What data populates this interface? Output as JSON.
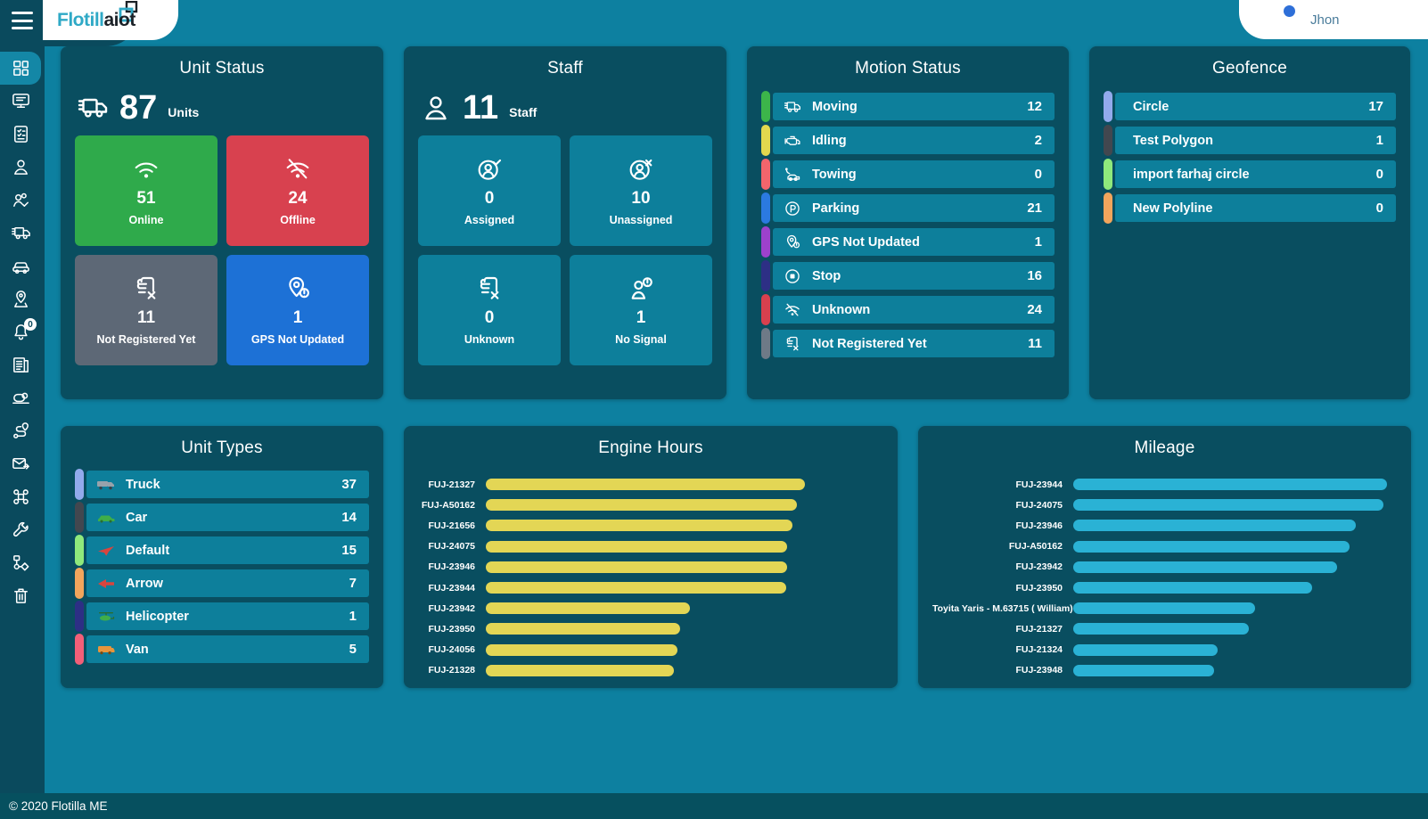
{
  "header": {
    "logo_text_primary": "Flotill",
    "logo_text_secondary": "aiot",
    "user_name": "Jhon",
    "bell_badge_color": "#2e6fd8"
  },
  "sidebar": {
    "notification_badge": "0",
    "items": [
      {
        "icon": "dashboard-icon",
        "active": true
      },
      {
        "icon": "monitor-icon"
      },
      {
        "icon": "checklist-icon"
      },
      {
        "icon": "user-icon"
      },
      {
        "icon": "staff-group-icon"
      },
      {
        "icon": "truck-icon"
      },
      {
        "icon": "car-icon"
      },
      {
        "icon": "map-pin-icon"
      },
      {
        "icon": "bell-icon",
        "badge": "0"
      },
      {
        "icon": "report-icon"
      },
      {
        "icon": "console-icon"
      },
      {
        "icon": "route-icon"
      },
      {
        "icon": "envelope-send-icon"
      },
      {
        "icon": "command-icon"
      },
      {
        "icon": "wrench-icon"
      },
      {
        "icon": "workflow-icon"
      },
      {
        "icon": "trash-icon"
      }
    ]
  },
  "cards": {
    "unit_status": {
      "title": "Unit Status",
      "total": "87",
      "total_label": "Units",
      "tiles": [
        {
          "icon": "wifi-icon",
          "value": "51",
          "label": "Online",
          "color": "#2faa4b"
        },
        {
          "icon": "wifi-off-icon",
          "value": "24",
          "label": "Offline",
          "color": "#d8414f"
        },
        {
          "icon": "document-x-icon",
          "value": "11",
          "label": "Not Registered Yet",
          "color": "#5d6876"
        },
        {
          "icon": "location-alert-icon",
          "value": "1",
          "label": "GPS Not Updated",
          "color": "#1d71d6"
        }
      ]
    },
    "staff": {
      "title": "Staff",
      "total": "11",
      "total_label": "Staff",
      "tiles": [
        {
          "icon": "person-check-icon",
          "value": "0",
          "label": "Assigned",
          "color": "#0d7f9b"
        },
        {
          "icon": "person-x-icon",
          "value": "10",
          "label": "Unassigned",
          "color": "#0d7f9b"
        },
        {
          "icon": "document-x-icon",
          "value": "0",
          "label": "Unknown",
          "color": "#0d7f9b"
        },
        {
          "icon": "person-alert-icon",
          "value": "1",
          "label": "No Signal",
          "color": "#0d7f9b"
        }
      ]
    },
    "motion_status": {
      "title": "Motion Status",
      "rows": [
        {
          "icon": "truck-icon",
          "label": "Moving",
          "value": "12",
          "color": "#3cb54a"
        },
        {
          "icon": "engine-icon",
          "label": "Idling",
          "value": "2",
          "color": "#e2d84e"
        },
        {
          "icon": "tow-truck-icon",
          "label": "Towing",
          "value": "0",
          "color": "#f2656c"
        },
        {
          "icon": "parking-icon",
          "label": "Parking",
          "value": "21",
          "color": "#2b7ae0"
        },
        {
          "icon": "location-alert-icon",
          "label": "GPS Not Updated",
          "value": "1",
          "color": "#9d41cc"
        },
        {
          "icon": "stop-icon",
          "label": "Stop",
          "value": "16",
          "color": "#2d2f85"
        },
        {
          "icon": "wifi-off-icon",
          "label": "Unknown",
          "value": "24",
          "color": "#d8404e"
        },
        {
          "icon": "document-x-icon",
          "label": "Not Registered Yet",
          "value": "11",
          "color": "#6e7a87"
        }
      ]
    },
    "geofence": {
      "title": "Geofence",
      "rows": [
        {
          "label": "Circle",
          "value": "17",
          "color": "#92aaec"
        },
        {
          "label": "Test Polygon",
          "value": "1",
          "color": "#42474f"
        },
        {
          "label": "import farhaj circle",
          "value": "0",
          "color": "#8fe97c"
        },
        {
          "label": "New Polyline",
          "value": "0",
          "color": "#f2a55c"
        }
      ]
    },
    "unit_types": {
      "title": "Unit Types",
      "rows": [
        {
          "icon": "truck-image-icon",
          "label": "Truck",
          "value": "37",
          "color": "#92aaec"
        },
        {
          "icon": "car-image-icon",
          "label": "Car",
          "value": "14",
          "color": "#42474f"
        },
        {
          "icon": "plane-image-icon",
          "label": "Default",
          "value": "15",
          "color": "#8fe97c"
        },
        {
          "icon": "arrow-image-icon",
          "label": "Arrow",
          "value": "7",
          "color": "#f2a55c"
        },
        {
          "icon": "helicopter-image-icon",
          "label": "Helicopter",
          "value": "1",
          "color": "#2d2f85"
        },
        {
          "icon": "van-image-icon",
          "label": "Van",
          "value": "5",
          "color": "#f25f78"
        }
      ]
    }
  },
  "chart_data": [
    {
      "id": "engine_hours",
      "type": "bar",
      "orientation": "horizontal",
      "title": "Engine Hours",
      "bar_color": "#e3d655",
      "categories": [
        "FUJ-21327",
        "FUJ-A50162",
        "FUJ-21656",
        "FUJ-24075",
        "FUJ-23946",
        "FUJ-23944",
        "FUJ-23942",
        "FUJ-23950",
        "FUJ-24056",
        "FUJ-21328"
      ],
      "values_pct_of_max": [
        100,
        97.5,
        96,
        94.5,
        94.5,
        94,
        64,
        61,
        60,
        59
      ]
    },
    {
      "id": "mileage",
      "type": "bar",
      "orientation": "horizontal",
      "title": "Mileage",
      "bar_color": "#2ab2d5",
      "categories": [
        "FUJ-23944",
        "FUJ-24075",
        "FUJ-23946",
        "FUJ-A50162",
        "FUJ-23942",
        "FUJ-23950",
        "Toyita Yaris - M.63715 ( William)",
        "FUJ-21327",
        "FUJ-21324",
        "FUJ-23948"
      ],
      "values_pct_of_max": [
        100,
        99,
        90,
        88,
        84,
        76,
        58,
        56,
        46,
        45
      ]
    }
  ],
  "colors": {
    "page_bg": "#0d80a0",
    "card_bg": "#094e60",
    "row_bg": "#0d7f9b",
    "sidebar_bg": "#0a4a5d",
    "active_item_bg": "#1487a6",
    "footer_bg": "#06505f"
  },
  "footer": {
    "copyright": "© 2020 Flotilla ME"
  }
}
